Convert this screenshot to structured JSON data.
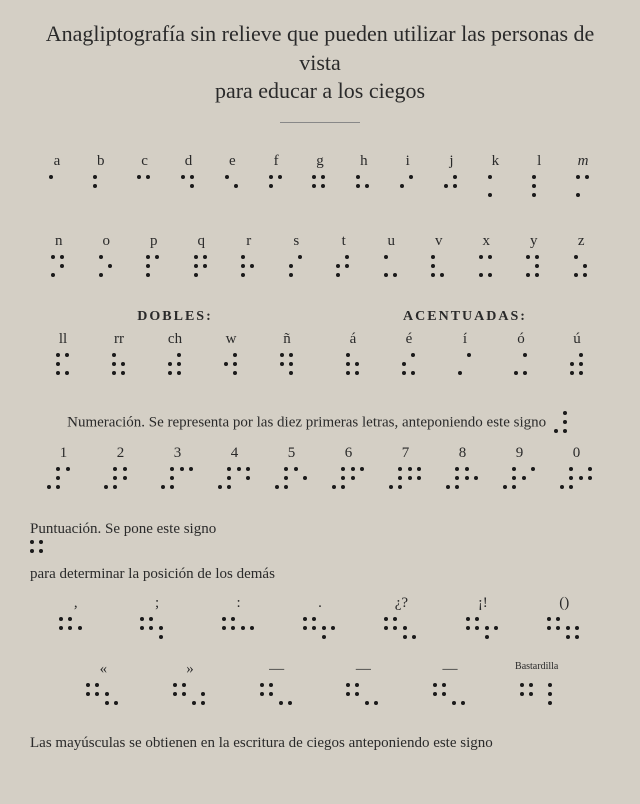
{
  "title_line1": "Anagliptografía sin relieve que pueden utilizar las personas de vista",
  "title_line2": "para educar a los ciegos",
  "alphabet_row1": [
    {
      "label": "a",
      "dots": [
        1,
        0,
        0,
        0,
        0,
        0
      ],
      "italic": false
    },
    {
      "label": "b",
      "dots": [
        1,
        0,
        1,
        0,
        0,
        0
      ],
      "italic": false
    },
    {
      "label": "c",
      "dots": [
        1,
        1,
        0,
        0,
        0,
        0
      ],
      "italic": false
    },
    {
      "label": "d",
      "dots": [
        1,
        1,
        0,
        1,
        0,
        0
      ],
      "italic": false
    },
    {
      "label": "e",
      "dots": [
        1,
        0,
        0,
        1,
        0,
        0
      ],
      "italic": false
    },
    {
      "label": "f",
      "dots": [
        1,
        1,
        1,
        0,
        0,
        0
      ],
      "italic": false
    },
    {
      "label": "g",
      "dots": [
        1,
        1,
        1,
        1,
        0,
        0
      ],
      "italic": false
    },
    {
      "label": "h",
      "dots": [
        1,
        0,
        1,
        1,
        0,
        0
      ],
      "italic": false
    },
    {
      "label": "i",
      "dots": [
        0,
        1,
        1,
        0,
        0,
        0
      ],
      "italic": false
    },
    {
      "label": "j",
      "dots": [
        0,
        1,
        1,
        1,
        0,
        0
      ],
      "italic": false
    },
    {
      "label": "k",
      "dots": [
        1,
        0,
        0,
        0,
        1,
        0
      ],
      "italic": false
    },
    {
      "label": "l",
      "dots": [
        1,
        0,
        1,
        0,
        1,
        0
      ],
      "italic": false
    },
    {
      "label": "m",
      "dots": [
        1,
        1,
        0,
        0,
        1,
        0
      ],
      "italic": true
    }
  ],
  "alphabet_row2": [
    {
      "label": "n",
      "dots": [
        1,
        1,
        0,
        1,
        1,
        0
      ],
      "italic": false
    },
    {
      "label": "o",
      "dots": [
        1,
        0,
        0,
        1,
        1,
        0
      ],
      "italic": false
    },
    {
      "label": "p",
      "dots": [
        1,
        1,
        1,
        0,
        1,
        0
      ],
      "italic": false
    },
    {
      "label": "q",
      "dots": [
        1,
        1,
        1,
        1,
        1,
        0
      ],
      "italic": false
    },
    {
      "label": "r",
      "dots": [
        1,
        0,
        1,
        1,
        1,
        0
      ],
      "italic": false
    },
    {
      "label": "s",
      "dots": [
        0,
        1,
        1,
        0,
        1,
        0
      ],
      "italic": false
    },
    {
      "label": "t",
      "dots": [
        0,
        1,
        1,
        1,
        1,
        0
      ],
      "italic": false
    },
    {
      "label": "u",
      "dots": [
        1,
        0,
        0,
        0,
        1,
        1
      ],
      "italic": false
    },
    {
      "label": "v",
      "dots": [
        1,
        0,
        1,
        0,
        1,
        1
      ],
      "italic": false
    },
    {
      "label": "x",
      "dots": [
        1,
        1,
        0,
        0,
        1,
        1
      ],
      "italic": false
    },
    {
      "label": "y",
      "dots": [
        1,
        1,
        0,
        1,
        1,
        1
      ],
      "italic": false
    },
    {
      "label": "z",
      "dots": [
        1,
        0,
        0,
        1,
        1,
        1
      ],
      "italic": false
    }
  ],
  "section_dobles": "DOBLES:",
  "section_acentuadas": "ACENTUADAS:",
  "dobles_row": [
    {
      "label": "ll",
      "dots": [
        1,
        1,
        1,
        0,
        1,
        1
      ]
    },
    {
      "label": "rr",
      "dots": [
        1,
        0,
        1,
        1,
        1,
        1
      ]
    },
    {
      "label": "ch",
      "dots": [
        0,
        1,
        1,
        1,
        1,
        1
      ]
    },
    {
      "label": "w",
      "dots": [
        0,
        1,
        1,
        1,
        0,
        1
      ]
    },
    {
      "label": "ñ",
      "dots": [
        1,
        1,
        1,
        1,
        0,
        1
      ]
    }
  ],
  "acentuadas_row": [
    {
      "label": "á",
      "dots": [
        1,
        0,
        1,
        1,
        1,
        1
      ]
    },
    {
      "label": "é",
      "dots": [
        0,
        1,
        1,
        0,
        1,
        1
      ]
    },
    {
      "label": "í",
      "dots": [
        0,
        1,
        0,
        0,
        1,
        0
      ]
    },
    {
      "label": "ó",
      "dots": [
        0,
        1,
        0,
        0,
        1,
        1
      ]
    },
    {
      "label": "ú",
      "dots": [
        0,
        1,
        1,
        1,
        1,
        1
      ]
    }
  ],
  "numeracion_text": "Numeración. Se representa por las diez primeras letras, anteponiendo este signo",
  "numeracion_sign": [
    0,
    1,
    0,
    1,
    1,
    1
  ],
  "numbers_row": [
    {
      "label": "1",
      "dots": [
        1,
        0,
        0,
        0,
        0,
        0
      ]
    },
    {
      "label": "2",
      "dots": [
        1,
        0,
        1,
        0,
        0,
        0
      ]
    },
    {
      "label": "3",
      "dots": [
        1,
        1,
        0,
        0,
        0,
        0
      ]
    },
    {
      "label": "4",
      "dots": [
        1,
        1,
        0,
        1,
        0,
        0
      ]
    },
    {
      "label": "5",
      "dots": [
        1,
        0,
        0,
        1,
        0,
        0
      ]
    },
    {
      "label": "6",
      "dots": [
        1,
        1,
        1,
        0,
        0,
        0
      ]
    },
    {
      "label": "7",
      "dots": [
        1,
        1,
        1,
        1,
        0,
        0
      ]
    },
    {
      "label": "8",
      "dots": [
        1,
        0,
        1,
        1,
        0,
        0
      ]
    },
    {
      "label": "9",
      "dots": [
        0,
        1,
        1,
        0,
        0,
        0
      ]
    },
    {
      "label": "0",
      "dots": [
        0,
        1,
        1,
        1,
        0,
        0
      ]
    }
  ],
  "puntuacion_text_pre": "Puntuación. Se pone este signo",
  "puntuacion_sign": [
    1,
    1,
    1,
    1,
    0,
    0
  ],
  "puntuacion_text_post": "para determinar la posición de los demás",
  "punct_row1": [
    {
      "label": ",",
      "dots": [
        0,
        0,
        1,
        0,
        0,
        0
      ]
    },
    {
      "label": ";",
      "dots": [
        0,
        0,
        1,
        0,
        1,
        0
      ]
    },
    {
      "label": ":",
      "dots": [
        0,
        0,
        1,
        1,
        0,
        0
      ]
    },
    {
      "label": ".",
      "dots": [
        0,
        0,
        1,
        1,
        1,
        0
      ]
    },
    {
      "label": "¿?",
      "dots": [
        0,
        0,
        1,
        0,
        1,
        1
      ]
    },
    {
      "label": "¡!",
      "dots": [
        0,
        0,
        1,
        1,
        1,
        0
      ]
    },
    {
      "label": "()",
      "dots": [
        0,
        0,
        1,
        1,
        1,
        1
      ]
    }
  ],
  "punct_row2": [
    {
      "label": "«",
      "dots": [
        0,
        0,
        1,
        0,
        1,
        1
      ]
    },
    {
      "label": "»",
      "dots": [
        0,
        0,
        0,
        1,
        1,
        1
      ]
    },
    {
      "label": "—",
      "dots": [
        0,
        0,
        0,
        0,
        1,
        1
      ]
    },
    {
      "label": "—",
      "dots": [
        0,
        0,
        0,
        0,
        1,
        1
      ]
    },
    {
      "label": "—",
      "dots": [
        0,
        0,
        0,
        0,
        1,
        1
      ]
    },
    {
      "label": "Bastardilla",
      "dots": [
        0,
        1,
        0,
        1,
        0,
        1
      ],
      "small": true
    }
  ],
  "final_text": "Las mayúsculas se obtienen en la escritura de ciegos anteponiendo este signo",
  "colors": {
    "bg": "#d4cfc5",
    "text": "#2a2a2a",
    "dot": "#1a1a1a"
  }
}
